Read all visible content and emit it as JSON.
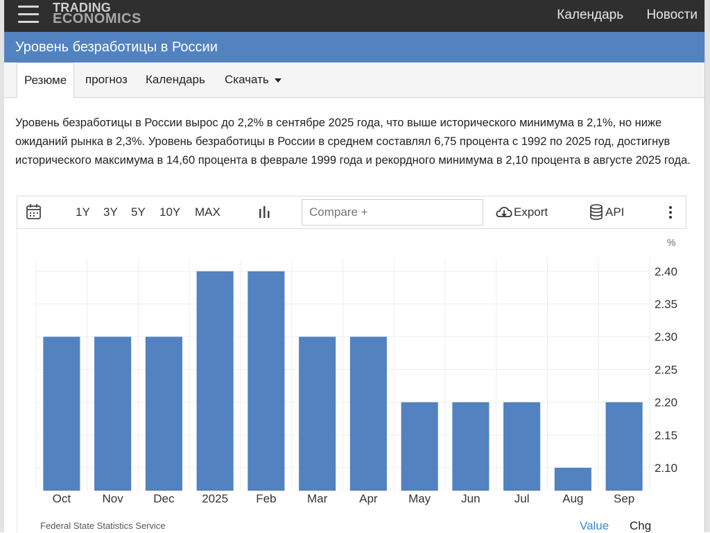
{
  "header": {
    "logo_line1": "TRADING",
    "logo_line2": "ECONOMICS",
    "nav": [
      "Календарь",
      "Новости"
    ]
  },
  "page_title": "Уровень безработицы в России",
  "tabs": [
    {
      "label": "Резюме",
      "active": true
    },
    {
      "label": "прогноз"
    },
    {
      "label": "Календарь"
    },
    {
      "label": "Скачать"
    }
  ],
  "summary": "Уровень безработицы в России вырос до 2,2% в сентябре 2025 года, что выше исторического минимума в 2,1%, но ниже ожиданий рынка в 2,3%. Уровень безработицы в России в среднем составлял 6,75 процента с 1992 по 2025 год, достигнув исторического максимума в 14,60 процента в феврале 1999 года и рекордного минимума в 2,10 процента в августе 2025 года.",
  "toolbar": {
    "ranges": [
      "1Y",
      "3Y",
      "5Y",
      "10Y",
      "MAX"
    ],
    "compare_placeholder": "Compare +",
    "export_label": "Export",
    "api_label": "API"
  },
  "chart_data": {
    "type": "bar",
    "categories": [
      "Oct",
      "Nov",
      "Dec",
      "2025",
      "Feb",
      "Mar",
      "Apr",
      "May",
      "Jun",
      "Jul",
      "Aug",
      "Sep"
    ],
    "values": [
      2.3,
      2.3,
      2.3,
      2.4,
      2.4,
      2.3,
      2.3,
      2.2,
      2.2,
      2.2,
      2.1,
      2.2
    ],
    "ylabel": "%",
    "ylim": [
      2.065,
      2.42
    ],
    "y_ticks": [
      "2.40",
      "2.35",
      "2.30",
      "2.25",
      "2.20",
      "2.15",
      "2.10"
    ],
    "y_tick_values": [
      2.4,
      2.35,
      2.3,
      2.25,
      2.2,
      2.15,
      2.1
    ],
    "bar_color": "#5282c0",
    "grid": true
  },
  "footer": {
    "source": "Federal State Statistics Service",
    "value_label": "Value",
    "chg_label": "Chg"
  }
}
